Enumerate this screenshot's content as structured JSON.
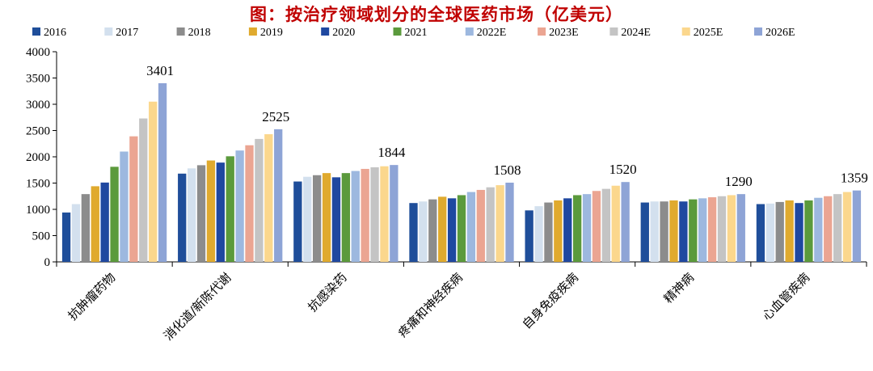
{
  "chart_data": {
    "type": "bar",
    "title": "图：按治疗领域划分的全球医药市场（亿美元）",
    "xlabel": "",
    "ylabel": "",
    "ylim": [
      0,
      4000
    ],
    "yticks": [
      0,
      500,
      1000,
      1500,
      2000,
      2500,
      3000,
      3500,
      4000
    ],
    "grid": false,
    "legend_position": "top",
    "categories": [
      "抗肿瘤药物",
      "消化道/新陈代谢",
      "抗感染药",
      "疼痛和神经疾病",
      "自身免疫疾病",
      "精神病",
      "心血管疾病"
    ],
    "series": [
      {
        "name": "2016",
        "color": "#1f4e9a",
        "values": [
          940,
          1680,
          1530,
          1120,
          980,
          1130,
          1100
        ]
      },
      {
        "name": "2017",
        "color": "#d3e0ee",
        "values": [
          1100,
          1780,
          1620,
          1150,
          1060,
          1150,
          1110
        ]
      },
      {
        "name": "2018",
        "color": "#8c8c8c",
        "values": [
          1290,
          1840,
          1650,
          1190,
          1130,
          1150,
          1140
        ]
      },
      {
        "name": "2019",
        "color": "#e0aa2e",
        "values": [
          1440,
          1930,
          1690,
          1240,
          1170,
          1170,
          1170
        ]
      },
      {
        "name": "2020",
        "color": "#1f48a0",
        "values": [
          1510,
          1890,
          1610,
          1210,
          1210,
          1150,
          1120
        ]
      },
      {
        "name": "2021",
        "color": "#5b9a3c",
        "values": [
          1810,
          2010,
          1690,
          1270,
          1270,
          1190,
          1170
        ]
      },
      {
        "name": "2022E",
        "color": "#9db8df",
        "values": [
          2100,
          2120,
          1730,
          1330,
          1290,
          1210,
          1220
        ]
      },
      {
        "name": "2023E",
        "color": "#eba592",
        "values": [
          2390,
          2220,
          1770,
          1370,
          1350,
          1230,
          1250
        ]
      },
      {
        "name": "2024E",
        "color": "#c4c4c4",
        "values": [
          2730,
          2340,
          1800,
          1420,
          1390,
          1250,
          1290
        ]
      },
      {
        "name": "2025E",
        "color": "#fbd78d",
        "values": [
          3050,
          2430,
          1820,
          1460,
          1450,
          1270,
          1330
        ]
      },
      {
        "name": "2026E",
        "color": "#8ea4d6",
        "values": [
          3401,
          2525,
          1844,
          1508,
          1520,
          1290,
          1359
        ]
      }
    ],
    "data_labels": [
      "3401",
      "2525",
      "1844",
      "1508",
      "1520",
      "1290",
      "1359"
    ]
  }
}
